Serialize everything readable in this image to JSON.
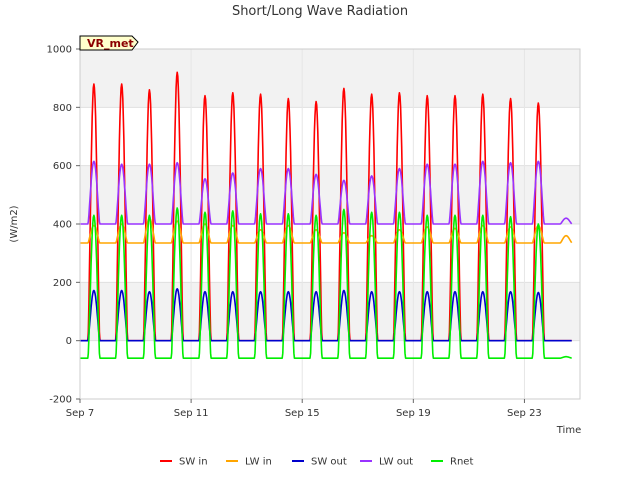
{
  "chart_data": {
    "type": "line",
    "title": "Short/Long Wave Radiation",
    "xlabel": "Time",
    "ylabel": "(W/m2)",
    "station_label": "VR_met",
    "xlim_days": [
      7,
      25
    ],
    "ylim": [
      -200,
      1000
    ],
    "yticks": [
      -200,
      0,
      200,
      400,
      600,
      800,
      1000
    ],
    "xticks": [
      {
        "day": 7,
        "label": "Sep 7"
      },
      {
        "day": 11,
        "label": "Sep 11"
      },
      {
        "day": 15,
        "label": "Sep 15"
      },
      {
        "day": 19,
        "label": "Sep 19"
      },
      {
        "day": 23,
        "label": "Sep 23"
      }
    ],
    "days": [
      7.5,
      8.5,
      9.5,
      10.5,
      11.5,
      12.5,
      13.5,
      14.5,
      15.5,
      16.5,
      17.5,
      18.5,
      19.5,
      20.5,
      21.5,
      22.5,
      23.5,
      24.5
    ],
    "data_end_day": 24.7,
    "grid": true,
    "series": [
      {
        "name": "SW in",
        "color": "#ff0000",
        "night": 0,
        "peaks": [
          880,
          880,
          860,
          920,
          840,
          850,
          845,
          830,
          820,
          865,
          845,
          850,
          840,
          840,
          845,
          830,
          815,
          0
        ]
      },
      {
        "name": "LW in",
        "color": "#ffa500",
        "night": 335,
        "peaks": [
          395,
          400,
          420,
          410,
          400,
          395,
          380,
          395,
          380,
          370,
          360,
          380,
          390,
          385,
          395,
          390,
          395,
          360
        ]
      },
      {
        "name": "SW out",
        "color": "#0000cc",
        "night": 0,
        "peaks": [
          172,
          172,
          168,
          178,
          168,
          168,
          168,
          168,
          168,
          172,
          168,
          168,
          168,
          168,
          168,
          168,
          165,
          0
        ]
      },
      {
        "name": "LW out",
        "color": "#9933ff",
        "night": 400,
        "peaks": [
          615,
          605,
          605,
          610,
          555,
          575,
          590,
          590,
          570,
          550,
          565,
          590,
          605,
          605,
          615,
          610,
          615,
          420
        ]
      },
      {
        "name": "Rnet",
        "color": "#00ee00",
        "night": -60,
        "peaks": [
          430,
          430,
          430,
          455,
          440,
          445,
          435,
          435,
          430,
          450,
          440,
          440,
          430,
          430,
          430,
          425,
          400,
          -55
        ]
      }
    ]
  }
}
